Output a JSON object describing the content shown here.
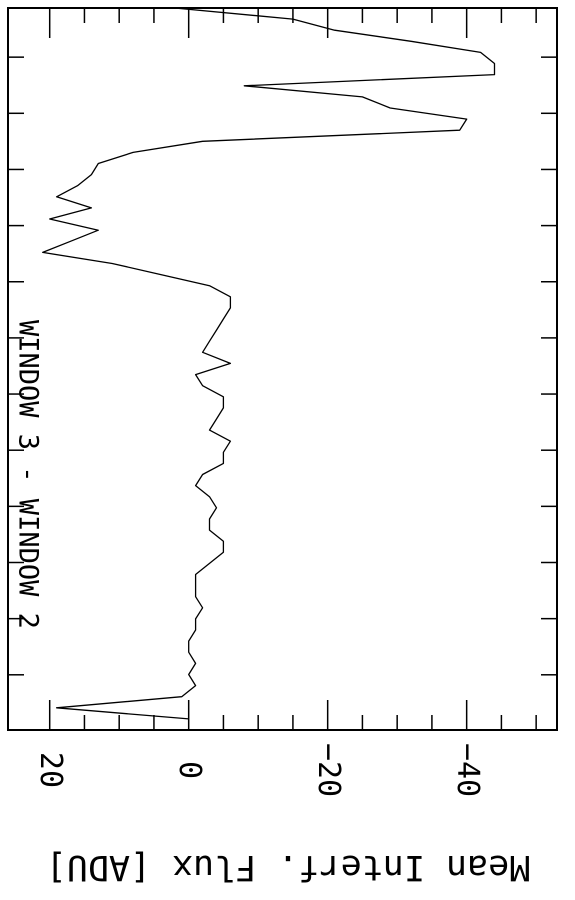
{
  "chart_data": {
    "type": "line",
    "orientation": "rotated 90 degrees clockwise (y axis drawn horizontally along the bottom, increasing to the left)",
    "ylabel": "Mean Interf. Flux [ADU]",
    "annotation": "WINDOW 3 - WINDOW 2",
    "y_ticks": [
      20,
      0,
      -20,
      -40
    ],
    "ylim": [
      -53,
      26
    ],
    "xlim": [
      0,
      65
    ],
    "grid": false,
    "series": [
      {
        "x": [
          0,
          1,
          2,
          3,
          4,
          5,
          6,
          7,
          8,
          9,
          10,
          11,
          12,
          13,
          14,
          15,
          16,
          17,
          18,
          19,
          20,
          21,
          22,
          23,
          24,
          25,
          26,
          27,
          28,
          29,
          30,
          31,
          32,
          33,
          34,
          35,
          36,
          37,
          38,
          39,
          40,
          41,
          42,
          43,
          44,
          45,
          46,
          47,
          48,
          49,
          50,
          51,
          52,
          53,
          54,
          55,
          56,
          57,
          58,
          59,
          60,
          61,
          62,
          63,
          64
        ],
        "y": [
          2,
          -15,
          -21,
          -32,
          -42,
          -44,
          -44,
          -8,
          -25,
          -29,
          -40,
          -39,
          -2,
          8,
          13,
          14,
          16,
          19,
          14,
          20,
          13,
          17,
          21,
          11,
          4,
          -3,
          -6,
          -6,
          -5,
          -4,
          -3,
          -2,
          -6,
          -1,
          -2,
          -5,
          -5,
          -4,
          -3,
          -6,
          -5,
          -5,
          -2,
          -1,
          -3,
          -4,
          -3,
          -3,
          -5,
          -5,
          -3,
          -1,
          -1,
          -1,
          -2,
          -1,
          -1,
          0,
          0,
          -1,
          0,
          -1,
          1,
          19,
          0
        ]
      }
    ]
  }
}
